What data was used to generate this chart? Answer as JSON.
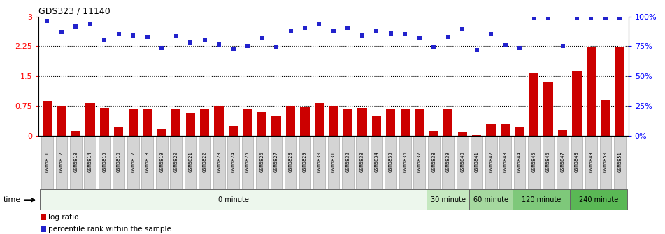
{
  "title": "GDS323 / 11140",
  "categories": [
    "GSM5811",
    "GSM5812",
    "GSM5813",
    "GSM5814",
    "GSM5815",
    "GSM5816",
    "GSM5817",
    "GSM5818",
    "GSM5819",
    "GSM5820",
    "GSM5821",
    "GSM5822",
    "GSM5823",
    "GSM5824",
    "GSM5825",
    "GSM5826",
    "GSM5827",
    "GSM5828",
    "GSM5829",
    "GSM5830",
    "GSM5831",
    "GSM5832",
    "GSM5833",
    "GSM5834",
    "GSM5835",
    "GSM5836",
    "GSM5837",
    "GSM5838",
    "GSM5839",
    "GSM5840",
    "GSM5841",
    "GSM5842",
    "GSM5843",
    "GSM5844",
    "GSM5845",
    "GSM5846",
    "GSM5847",
    "GSM5848",
    "GSM5849",
    "GSM5850",
    "GSM5851"
  ],
  "log_ratio": [
    0.88,
    0.75,
    0.12,
    0.82,
    0.7,
    0.22,
    0.66,
    0.68,
    0.18,
    0.66,
    0.58,
    0.66,
    0.75,
    0.25,
    0.68,
    0.6,
    0.5,
    0.75,
    0.72,
    0.82,
    0.75,
    0.68,
    0.7,
    0.5,
    0.68,
    0.66,
    0.66,
    0.12,
    0.66,
    0.1,
    0.02,
    0.3,
    0.3,
    0.22,
    1.58,
    1.35,
    0.15,
    1.62,
    2.22,
    0.9,
    2.22
  ],
  "percentile_rank": [
    2.88,
    2.6,
    2.75,
    2.82,
    2.4,
    2.55,
    2.52,
    2.48,
    2.2,
    2.5,
    2.35,
    2.42,
    2.3,
    2.18,
    2.25,
    2.45,
    2.22,
    2.62,
    2.72,
    2.82,
    2.62,
    2.72,
    2.52,
    2.62,
    2.58,
    2.55,
    2.45,
    2.22,
    2.48,
    2.68,
    2.15,
    2.55,
    2.28,
    2.2,
    2.95,
    2.95,
    2.25,
    2.98,
    2.95,
    2.95,
    2.98
  ],
  "time_groups": [
    {
      "label": "0 minute",
      "start": 0,
      "end": 27,
      "color": "#edf7ed"
    },
    {
      "label": "30 minute",
      "start": 27,
      "end": 30,
      "color": "#c5e8c0"
    },
    {
      "label": "60 minute",
      "start": 30,
      "end": 33,
      "color": "#a5d89f"
    },
    {
      "label": "120 minute",
      "start": 33,
      "end": 37,
      "color": "#7ec87a"
    },
    {
      "label": "240 minute",
      "start": 37,
      "end": 41,
      "color": "#5ab855"
    }
  ],
  "bar_color": "#cc0000",
  "scatter_color": "#2222cc",
  "left_yticks": [
    0,
    0.75,
    1.5,
    2.25,
    3.0
  ],
  "left_yticklabels": [
    "0",
    "0.75",
    "1.5",
    "2.25",
    "3"
  ],
  "right_yticks": [
    0,
    0.75,
    1.5,
    2.25,
    3.0
  ],
  "right_yticklabels": [
    "0%",
    "25%",
    "50%",
    "75%",
    "100%"
  ],
  "ylim": [
    0,
    3.0
  ],
  "hlines": [
    0.75,
    1.5,
    2.25
  ],
  "legend_items": [
    {
      "label": "log ratio",
      "color": "#cc0000",
      "marker": "s"
    },
    {
      "label": "percentile rank within the sample",
      "color": "#2222cc",
      "marker": "s"
    }
  ]
}
